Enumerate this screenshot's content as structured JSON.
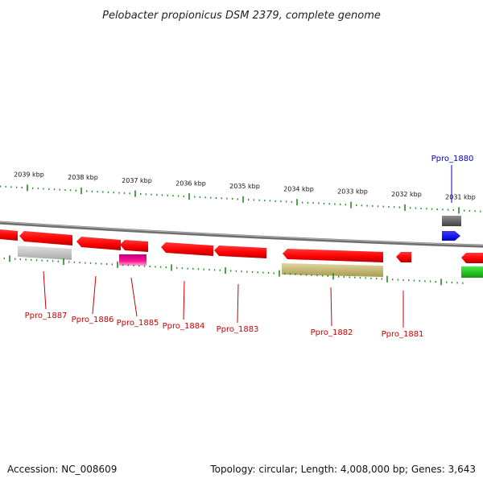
{
  "title": "Pelobacter propionicus DSM 2379, complete genome",
  "footer": {
    "accession": "Accession: NC_008609",
    "summary": "Topology: circular; Length: 4,008,000 bp; Genes: 3,643"
  },
  "ruler": {
    "unit": "kbp",
    "ticks": [
      {
        "label": "2039 kbp"
      },
      {
        "label": "2038 kbp"
      },
      {
        "label": "2037 kbp"
      },
      {
        "label": "2036 kbp"
      },
      {
        "label": "2035 kbp"
      },
      {
        "label": "2034 kbp"
      },
      {
        "label": "2033 kbp"
      },
      {
        "label": "2032 kbp"
      },
      {
        "label": "2031 kbp"
      }
    ]
  },
  "genes": [
    {
      "name": "Ppro_1887",
      "color": "#ff0000"
    },
    {
      "name": "Ppro_1886",
      "color": "#ff0000"
    },
    {
      "name": "Ppro_1885",
      "color": "#ff0000"
    },
    {
      "name": "Ppro_1884",
      "color": "#ff0000"
    },
    {
      "name": "Ppro_1883",
      "color": "#ff0000"
    },
    {
      "name": "Ppro_1882",
      "color": "#ff0000"
    },
    {
      "name": "Ppro_1881",
      "color": "#ff0000"
    },
    {
      "name": "Ppro_1880",
      "color": "#0000ff"
    }
  ],
  "colors": {
    "forward_cds": "#0000ff",
    "reverse_cds": "#ff0000",
    "backbone": "#808080",
    "gray_feature": "#c0c0c0",
    "magenta_feature": "#ff1493",
    "olive_feature": "#c8bd7a",
    "green_feature": "#22cc22",
    "dark_feature": "#606060",
    "tick": "#228b22"
  }
}
